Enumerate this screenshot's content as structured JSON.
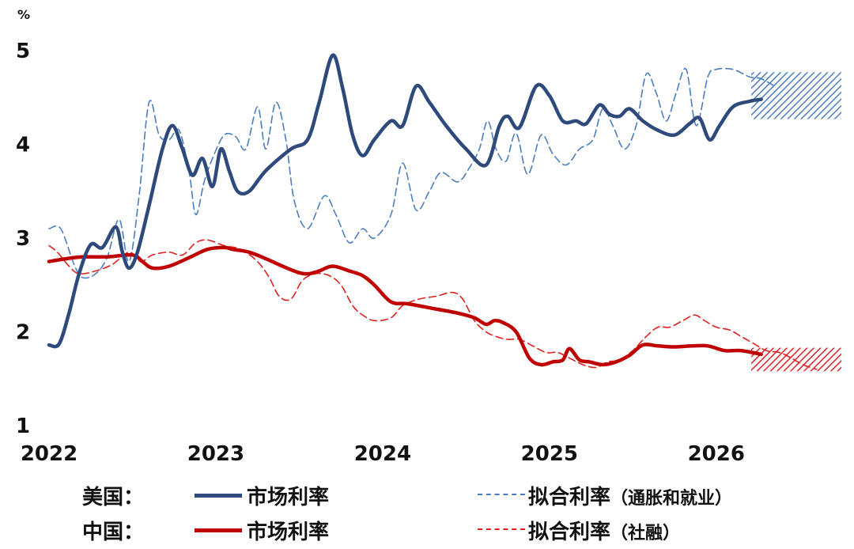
{
  "colors": {
    "us": "#2e4a7d",
    "us_fit": "#4a7ec0",
    "cn": "#c00000",
    "cn_fit": "#e02020"
  },
  "chart_data": {
    "type": "line",
    "unit_label": "%",
    "xlim": [
      2022.0,
      2026.75
    ],
    "ylim": [
      1,
      5
    ],
    "y_ticks": [
      "1",
      "2",
      "3",
      "4",
      "5"
    ],
    "x_ticks": [
      "2022",
      "2023",
      "2024",
      "2025",
      "2026"
    ],
    "series": [
      {
        "name": "美国：市场利率",
        "group": "us",
        "style": "solid",
        "points": [
          [
            2022.0,
            1.86
          ],
          [
            2022.06,
            1.87
          ],
          [
            2022.12,
            2.2
          ],
          [
            2022.18,
            2.62
          ],
          [
            2022.25,
            2.93
          ],
          [
            2022.32,
            2.9
          ],
          [
            2022.4,
            3.12
          ],
          [
            2022.44,
            2.85
          ],
          [
            2022.48,
            2.68
          ],
          [
            2022.53,
            2.85
          ],
          [
            2022.6,
            3.35
          ],
          [
            2022.68,
            3.95
          ],
          [
            2022.74,
            4.2
          ],
          [
            2022.8,
            3.95
          ],
          [
            2022.86,
            3.67
          ],
          [
            2022.92,
            3.85
          ],
          [
            2022.98,
            3.55
          ],
          [
            2023.03,
            3.95
          ],
          [
            2023.08,
            3.72
          ],
          [
            2023.13,
            3.5
          ],
          [
            2023.2,
            3.5
          ],
          [
            2023.3,
            3.72
          ],
          [
            2023.45,
            3.95
          ],
          [
            2023.55,
            4.05
          ],
          [
            2023.62,
            4.45
          ],
          [
            2023.7,
            4.95
          ],
          [
            2023.76,
            4.6
          ],
          [
            2023.82,
            4.1
          ],
          [
            2023.88,
            3.88
          ],
          [
            2023.95,
            4.05
          ],
          [
            2024.05,
            4.25
          ],
          [
            2024.12,
            4.2
          ],
          [
            2024.2,
            4.62
          ],
          [
            2024.28,
            4.45
          ],
          [
            2024.38,
            4.2
          ],
          [
            2024.5,
            3.95
          ],
          [
            2024.62,
            3.78
          ],
          [
            2024.7,
            4.2
          ],
          [
            2024.75,
            4.3
          ],
          [
            2024.82,
            4.18
          ],
          [
            2024.92,
            4.62
          ],
          [
            2025.0,
            4.52
          ],
          [
            2025.08,
            4.25
          ],
          [
            2025.16,
            4.25
          ],
          [
            2025.22,
            4.22
          ],
          [
            2025.3,
            4.42
          ],
          [
            2025.36,
            4.32
          ],
          [
            2025.42,
            4.3
          ],
          [
            2025.48,
            4.38
          ],
          [
            2025.56,
            4.25
          ],
          [
            2025.65,
            4.15
          ],
          [
            2025.75,
            4.1
          ],
          [
            2025.84,
            4.22
          ],
          [
            2025.9,
            4.28
          ],
          [
            2025.96,
            4.05
          ],
          [
            2026.02,
            4.2
          ],
          [
            2026.1,
            4.4
          ],
          [
            2026.2,
            4.46
          ],
          [
            2026.27,
            4.48
          ]
        ]
      },
      {
        "name": "美国：拟合利率（通胀和就业）",
        "group": "us",
        "style": "dashed",
        "points": [
          [
            2022.0,
            3.1
          ],
          [
            2022.07,
            3.1
          ],
          [
            2022.15,
            2.72
          ],
          [
            2022.2,
            2.58
          ],
          [
            2022.28,
            2.62
          ],
          [
            2022.35,
            2.8
          ],
          [
            2022.42,
            3.2
          ],
          [
            2022.48,
            2.75
          ],
          [
            2022.54,
            3.45
          ],
          [
            2022.6,
            4.45
          ],
          [
            2022.66,
            4.1
          ],
          [
            2022.72,
            4.05
          ],
          [
            2022.78,
            4.15
          ],
          [
            2022.84,
            3.7
          ],
          [
            2022.88,
            3.25
          ],
          [
            2022.93,
            3.6
          ],
          [
            2022.98,
            3.85
          ],
          [
            2023.05,
            4.1
          ],
          [
            2023.12,
            4.08
          ],
          [
            2023.18,
            3.95
          ],
          [
            2023.25,
            4.4
          ],
          [
            2023.3,
            3.95
          ],
          [
            2023.36,
            4.45
          ],
          [
            2023.42,
            4.05
          ],
          [
            2023.47,
            3.4
          ],
          [
            2023.55,
            3.1
          ],
          [
            2023.65,
            3.45
          ],
          [
            2023.72,
            3.25
          ],
          [
            2023.8,
            2.95
          ],
          [
            2023.88,
            3.1
          ],
          [
            2023.95,
            3.0
          ],
          [
            2024.05,
            3.25
          ],
          [
            2024.12,
            3.8
          ],
          [
            2024.2,
            3.3
          ],
          [
            2024.28,
            3.5
          ],
          [
            2024.35,
            3.7
          ],
          [
            2024.45,
            3.6
          ],
          [
            2024.52,
            3.75
          ],
          [
            2024.58,
            3.95
          ],
          [
            2024.63,
            4.25
          ],
          [
            2024.68,
            3.95
          ],
          [
            2024.74,
            3.82
          ],
          [
            2024.8,
            4.12
          ],
          [
            2024.87,
            3.68
          ],
          [
            2024.95,
            4.1
          ],
          [
            2025.02,
            3.9
          ],
          [
            2025.1,
            3.78
          ],
          [
            2025.18,
            3.95
          ],
          [
            2025.26,
            4.05
          ],
          [
            2025.32,
            4.38
          ],
          [
            2025.38,
            4.2
          ],
          [
            2025.45,
            3.95
          ],
          [
            2025.52,
            4.2
          ],
          [
            2025.58,
            4.75
          ],
          [
            2025.64,
            4.55
          ],
          [
            2025.7,
            4.25
          ],
          [
            2025.76,
            4.55
          ],
          [
            2025.82,
            4.8
          ],
          [
            2025.88,
            4.2
          ],
          [
            2025.95,
            4.72
          ],
          [
            2026.0,
            4.8
          ],
          [
            2026.1,
            4.8
          ],
          [
            2026.2,
            4.72
          ],
          [
            2026.27,
            4.7
          ],
          [
            2026.35,
            4.62
          ]
        ]
      },
      {
        "name": "中国：市场利率",
        "group": "cn",
        "style": "solid",
        "points": [
          [
            2022.0,
            2.75
          ],
          [
            2022.1,
            2.78
          ],
          [
            2022.2,
            2.8
          ],
          [
            2022.35,
            2.8
          ],
          [
            2022.5,
            2.82
          ],
          [
            2022.56,
            2.75
          ],
          [
            2022.62,
            2.68
          ],
          [
            2022.72,
            2.7
          ],
          [
            2022.85,
            2.8
          ],
          [
            2022.95,
            2.88
          ],
          [
            2023.05,
            2.9
          ],
          [
            2023.1,
            2.88
          ],
          [
            2023.2,
            2.85
          ],
          [
            2023.3,
            2.78
          ],
          [
            2023.4,
            2.7
          ],
          [
            2023.5,
            2.63
          ],
          [
            2023.56,
            2.62
          ],
          [
            2023.62,
            2.65
          ],
          [
            2023.7,
            2.7
          ],
          [
            2023.8,
            2.65
          ],
          [
            2023.88,
            2.6
          ],
          [
            2023.95,
            2.5
          ],
          [
            2024.05,
            2.32
          ],
          [
            2024.15,
            2.3
          ],
          [
            2024.3,
            2.25
          ],
          [
            2024.45,
            2.2
          ],
          [
            2024.55,
            2.15
          ],
          [
            2024.62,
            2.08
          ],
          [
            2024.67,
            2.12
          ],
          [
            2024.72,
            2.1
          ],
          [
            2024.8,
            2.0
          ],
          [
            2024.88,
            1.72
          ],
          [
            2024.95,
            1.65
          ],
          [
            2025.02,
            1.68
          ],
          [
            2025.08,
            1.7
          ],
          [
            2025.12,
            1.82
          ],
          [
            2025.18,
            1.7
          ],
          [
            2025.24,
            1.68
          ],
          [
            2025.32,
            1.65
          ],
          [
            2025.4,
            1.68
          ],
          [
            2025.48,
            1.75
          ],
          [
            2025.56,
            1.86
          ],
          [
            2025.65,
            1.85
          ],
          [
            2025.75,
            1.84
          ],
          [
            2025.85,
            1.85
          ],
          [
            2025.95,
            1.85
          ],
          [
            2026.05,
            1.8
          ],
          [
            2026.15,
            1.8
          ],
          [
            2026.27,
            1.76
          ]
        ]
      },
      {
        "name": "中国：拟合利率（社融）",
        "group": "cn",
        "style": "dashed",
        "points": [
          [
            2022.0,
            2.92
          ],
          [
            2022.05,
            2.85
          ],
          [
            2022.12,
            2.7
          ],
          [
            2022.18,
            2.62
          ],
          [
            2022.28,
            2.65
          ],
          [
            2022.38,
            2.72
          ],
          [
            2022.48,
            2.85
          ],
          [
            2022.55,
            2.75
          ],
          [
            2022.62,
            2.82
          ],
          [
            2022.72,
            2.85
          ],
          [
            2022.8,
            2.82
          ],
          [
            2022.88,
            2.95
          ],
          [
            2022.95,
            2.98
          ],
          [
            2023.05,
            2.92
          ],
          [
            2023.15,
            2.88
          ],
          [
            2023.25,
            2.75
          ],
          [
            2023.32,
            2.58
          ],
          [
            2023.38,
            2.38
          ],
          [
            2023.45,
            2.35
          ],
          [
            2023.52,
            2.55
          ],
          [
            2023.6,
            2.62
          ],
          [
            2023.68,
            2.6
          ],
          [
            2023.75,
            2.5
          ],
          [
            2023.82,
            2.28
          ],
          [
            2023.88,
            2.18
          ],
          [
            2023.95,
            2.12
          ],
          [
            2024.05,
            2.15
          ],
          [
            2024.12,
            2.28
          ],
          [
            2024.22,
            2.35
          ],
          [
            2024.32,
            2.38
          ],
          [
            2024.42,
            2.42
          ],
          [
            2024.48,
            2.35
          ],
          [
            2024.55,
            2.12
          ],
          [
            2024.62,
            2.0
          ],
          [
            2024.68,
            1.95
          ],
          [
            2024.75,
            1.92
          ],
          [
            2024.82,
            1.92
          ],
          [
            2024.9,
            1.85
          ],
          [
            2024.98,
            1.78
          ],
          [
            2025.05,
            1.78
          ],
          [
            2025.12,
            1.72
          ],
          [
            2025.2,
            1.65
          ],
          [
            2025.28,
            1.62
          ],
          [
            2025.35,
            1.68
          ],
          [
            2025.42,
            1.7
          ],
          [
            2025.5,
            1.8
          ],
          [
            2025.58,
            1.95
          ],
          [
            2025.65,
            2.05
          ],
          [
            2025.72,
            2.05
          ],
          [
            2025.8,
            2.12
          ],
          [
            2025.87,
            2.18
          ],
          [
            2025.93,
            2.12
          ],
          [
            2026.0,
            2.05
          ],
          [
            2026.08,
            2.02
          ],
          [
            2026.15,
            1.95
          ],
          [
            2026.22,
            1.88
          ],
          [
            2026.3,
            1.8
          ],
          [
            2026.38,
            1.78
          ],
          [
            2026.45,
            1.72
          ],
          [
            2026.52,
            1.65
          ],
          [
            2026.6,
            1.6
          ]
        ]
      }
    ],
    "forecast_bands": [
      {
        "group": "us",
        "x_start": 2026.21,
        "x_end": 2026.75,
        "y_low": 4.27,
        "y_high": 4.77
      },
      {
        "group": "cn",
        "x_start": 2026.21,
        "x_end": 2026.75,
        "y_low": 1.58,
        "y_high": 1.83
      }
    ]
  },
  "legend": {
    "rows": [
      {
        "country": "美国：",
        "solid_label": "市场利率",
        "dashed_label": "拟合利率",
        "dashed_note": "（通胀和就业）"
      },
      {
        "country": "中国：",
        "solid_label": "市场利率",
        "dashed_label": "拟合利率",
        "dashed_note": "（社融）"
      }
    ]
  }
}
